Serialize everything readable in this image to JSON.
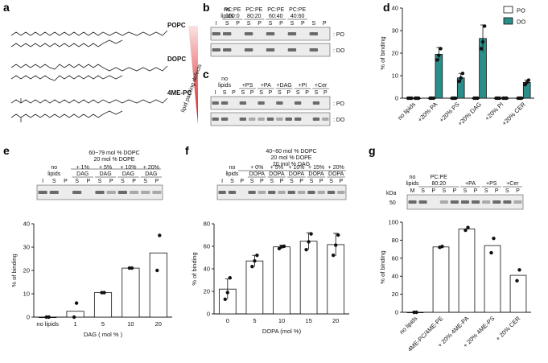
{
  "panel_labels": [
    "a",
    "b",
    "c",
    "d",
    "e",
    "f",
    "g"
  ],
  "panel_a": {
    "lipids": [
      "POPC",
      "DOPC",
      "4ME-PC"
    ],
    "gradient_label": "lipid packing defects"
  },
  "panel_b": {
    "conditions": [
      "no lipids",
      "PC:PE 100:0",
      "PC:PE 80:20",
      "PC:PE 60:40",
      "PC:PE 40:60"
    ],
    "cond_lines": [
      [
        "no",
        "lipids"
      ],
      [
        "PC:PE",
        "100:0"
      ],
      [
        "PC:PE",
        "80:20"
      ],
      [
        "PC:PE",
        "60:40"
      ],
      [
        "PC:PE",
        "40:60"
      ]
    ],
    "lanes": [
      "I",
      "S",
      "P",
      "S",
      "P",
      "S",
      "P",
      "S",
      "P",
      "S",
      "P"
    ],
    "rows": [
      ": PO",
      ": DO"
    ]
  },
  "panel_c": {
    "cond_lines": [
      [
        "no",
        "lipids"
      ],
      [
        "+PS"
      ],
      [
        "+PA"
      ],
      [
        "+DAG"
      ],
      [
        "+PI"
      ],
      [
        "+Cer"
      ]
    ],
    "lanes": [
      "I",
      "S",
      "P",
      "S",
      "P",
      "S",
      "P",
      "S",
      "P",
      "S",
      "P",
      "S",
      "P"
    ],
    "rows": [
      ": PO",
      ": DO"
    ]
  },
  "panel_e": {
    "header": [
      "60~79 mol % DOPC",
      "20 mol % DOPE"
    ],
    "cond_lines": [
      [
        "no",
        "lipids"
      ],
      [
        "+ 1%",
        "DAG"
      ],
      [
        "+ 5%",
        "DAG"
      ],
      [
        "+ 10%",
        "DAG"
      ],
      [
        "+ 20%",
        "DAG"
      ]
    ],
    "lanes": [
      "I",
      "S",
      "P",
      "S",
      "P",
      "S",
      "P",
      "S",
      "P",
      "S",
      "P"
    ]
  },
  "panel_f": {
    "header": [
      "40~60 mol % DOPC",
      "20 mol % DOPE",
      "20 mol % DAG"
    ],
    "cond_lines": [
      [
        "no",
        "lipids"
      ],
      [
        "+ 0%",
        "DOPA"
      ],
      [
        "+ 5%",
        "DOPA"
      ],
      [
        "+ 10%",
        "DOPA"
      ],
      [
        "+ 15%",
        "DOPA"
      ],
      [
        "+ 20%",
        "DOPA"
      ]
    ],
    "lanes": [
      "I",
      "S",
      "P",
      "S",
      "P",
      "S",
      "P",
      "S",
      "P",
      "S",
      "P",
      "S",
      "P"
    ]
  },
  "panel_g": {
    "kda_label": "kDa",
    "kda_value": "50",
    "cond_lines": [
      [
        "no",
        "lipids"
      ],
      [
        "PC:PE",
        "80:20"
      ],
      [
        "+PA"
      ],
      [
        "+PS"
      ],
      [
        "+Cer"
      ]
    ],
    "lanes": [
      "M",
      "S",
      "P",
      "S",
      "P",
      "S",
      "P",
      "S",
      "P",
      "S",
      "P"
    ]
  },
  "chart_data": [
    {
      "id": "d",
      "type": "bar",
      "ylabel": "% of binding",
      "ylim": [
        0,
        40
      ],
      "yticks": [
        0,
        10,
        20,
        30,
        40
      ],
      "categories": [
        "no lipids",
        "+20% PA",
        "+20% PS",
        "+20% DAG",
        "+20% PI",
        "+20% CER"
      ],
      "legend_position": "top-right",
      "series": [
        {
          "name": "PO",
          "color": "#ffffff",
          "values": [
            0,
            0,
            0,
            0,
            0,
            0
          ],
          "errors": [
            0.3,
            0.3,
            0.3,
            0.3,
            0.3,
            0.3
          ],
          "points": [
            [
              0,
              0,
              0
            ],
            [
              0,
              0,
              0
            ],
            [
              0,
              0,
              0
            ],
            [
              0,
              0,
              0
            ],
            [
              0,
              0,
              0
            ],
            [
              0,
              0,
              0
            ]
          ]
        },
        {
          "name": "DO",
          "color": "#2a8f8a",
          "values": [
            0,
            19.5,
            9,
            26.5,
            0,
            7
          ],
          "errors": [
            0.3,
            3,
            2,
            6,
            0.3,
            1
          ],
          "points": [
            [
              0,
              0,
              0
            ],
            [
              17,
              19,
              22
            ],
            [
              7.5,
              9,
              11
            ],
            [
              22,
              25,
              32
            ],
            [
              0,
              0,
              0
            ],
            [
              6,
              7,
              8
            ]
          ]
        }
      ]
    },
    {
      "id": "e",
      "type": "bar",
      "ylabel": "% of binding",
      "xlabel": "DAG ( mol % )",
      "ylim": [
        0,
        40
      ],
      "categories": [
        "no lipids",
        "1",
        "5",
        "10",
        "20"
      ],
      "values": [
        0,
        2.5,
        10.5,
        21,
        27.5
      ],
      "points": [
        [
          0,
          0
        ],
        [
          0,
          6
        ],
        [
          10.5,
          10.5
        ],
        [
          21,
          21
        ],
        [
          20,
          35
        ]
      ]
    },
    {
      "id": "f",
      "type": "bar",
      "ylabel": "% of binding",
      "xlabel": "DOPA (mol %)",
      "ylim": [
        0,
        80
      ],
      "yticks": [
        0,
        20,
        40,
        60,
        80
      ],
      "categories": [
        "0",
        "5",
        "10",
        "15",
        "20"
      ],
      "values": [
        22,
        47,
        59.5,
        64.5,
        61.5
      ],
      "errors": [
        9,
        5,
        1.5,
        7.5,
        10
      ],
      "points": [
        [
          13,
          19,
          32
        ],
        [
          42,
          47,
          52
        ],
        [
          58,
          59.5,
          60
        ],
        [
          57,
          64,
          71
        ],
        [
          52,
          61,
          70
        ]
      ]
    },
    {
      "id": "g",
      "type": "bar",
      "ylabel": "% of binding",
      "ylim": [
        0,
        100
      ],
      "yticks": [
        0,
        20,
        40,
        60,
        80,
        100
      ],
      "categories": [
        "no lipids",
        "4ME-PC/4ME-PE",
        "+ 20% 4ME-PA",
        "+ 20% 4ME-PS",
        "+ 20% CER"
      ],
      "values": [
        0,
        72.5,
        92.5,
        74,
        41
      ],
      "points": [
        [
          0,
          0
        ],
        [
          72,
          73
        ],
        [
          91,
          94
        ],
        [
          66,
          82
        ],
        [
          35,
          47
        ]
      ]
    }
  ]
}
